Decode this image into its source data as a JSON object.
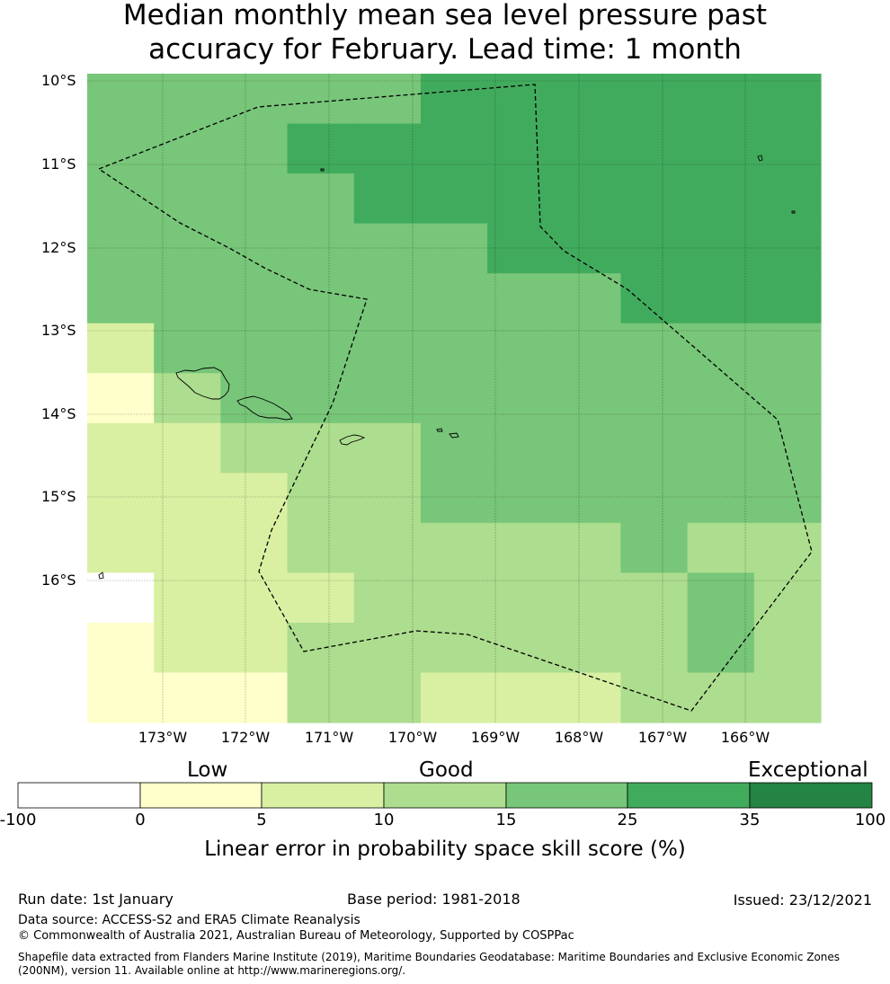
{
  "title": {
    "line1": "Median monthly mean sea level pressure past",
    "line2": "accuracy for February. Lead time: 1 month"
  },
  "map": {
    "lat_labels": [
      "10°S",
      "11°S",
      "12°S",
      "13°S",
      "14°S",
      "15°S",
      "16°S"
    ],
    "lon_labels": [
      "173°W",
      "172°W",
      "171°W",
      "170°W",
      "169°W",
      "168°W",
      "167°W",
      "166°W"
    ],
    "colors": {
      "c0": "#ffffff",
      "c1": "#ffffcc",
      "c2": "#d9f0a3",
      "c3": "#addd8e",
      "c4": "#78c679",
      "c5": "#41ab5d",
      "c6": "#238443"
    },
    "skill_category_grid": [
      "44444555555",
      "44455555555",
      "44445555555",
      "44444455555",
      "44444444555",
      "24444444444",
      "13444444444",
      "22333444444",
      "22233444444",
      "22233333433",
      "02223333343",
      "12233333343",
      "11133222333"
    ]
  },
  "colorbar": {
    "category_labels": [
      "Low",
      "Good",
      "Exceptional"
    ],
    "ticks": [
      "-100",
      "0",
      "5",
      "10",
      "15",
      "25",
      "35",
      "100"
    ],
    "title": "Linear error in probability space skill score (%)"
  },
  "footer": {
    "run_date": "Run date: 1st January",
    "base_period": "Base period: 1981-2018",
    "issued": "Issued: 23/12/2021",
    "data_source": "Data source: ACCESS-S2 and ERA5 Climate Reanalysis",
    "copyright": "© Commonwealth of Australia 2021, Australian Bureau of Meteorology, Supported by COSPPac",
    "shapefile1": "Shapefile data extracted from Flanders Marine Institute (2019), Maritime Boundaries Geodatabase: Maritime Boundaries and Exclusive Economic Zones",
    "shapefile2": "(200NM), version 11. Available online at http://www.marineregions.org/."
  }
}
